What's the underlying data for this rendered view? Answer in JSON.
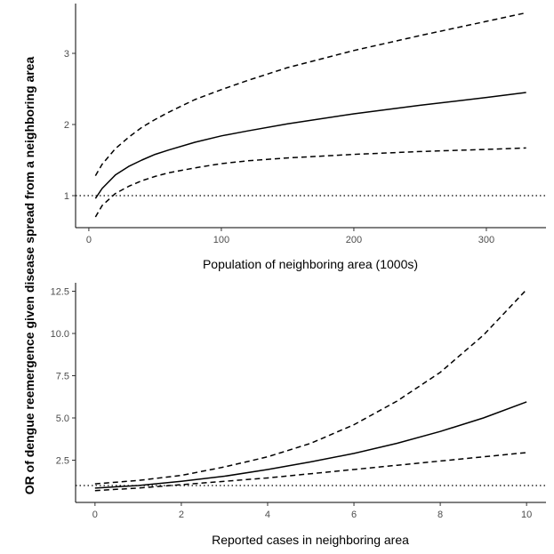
{
  "shared_ylabel": "OR of dengue reemergence given disease spread from a neighboring area",
  "colors": {
    "line": "#000000",
    "tick_text": "#4d4d4d",
    "background": "#ffffff"
  },
  "chart_data": [
    {
      "type": "line",
      "xlabel": "Population of neighboring area (1000s)",
      "ylabel": "",
      "xlim": [
        -10,
        345
      ],
      "ylim": [
        0.55,
        3.7
      ],
      "xticks": [
        0,
        100,
        200,
        300
      ],
      "yticks": [
        1,
        2,
        3
      ],
      "reference_line": {
        "y": 1,
        "style": "dotted"
      },
      "x": [
        5,
        10,
        20,
        30,
        40,
        50,
        60,
        80,
        100,
        120,
        150,
        200,
        250,
        300,
        330
      ],
      "series": [
        {
          "name": "upper CI",
          "style": "dashed",
          "values": [
            1.28,
            1.44,
            1.66,
            1.82,
            1.96,
            2.07,
            2.17,
            2.35,
            2.49,
            2.62,
            2.8,
            3.04,
            3.25,
            3.45,
            3.57
          ]
        },
        {
          "name": "estimate",
          "style": "solid",
          "values": [
            0.96,
            1.1,
            1.29,
            1.41,
            1.5,
            1.58,
            1.64,
            1.75,
            1.84,
            1.91,
            2.01,
            2.15,
            2.27,
            2.38,
            2.45
          ]
        },
        {
          "name": "lower CI",
          "style": "dashed",
          "values": [
            0.7,
            0.86,
            1.03,
            1.13,
            1.21,
            1.27,
            1.32,
            1.39,
            1.45,
            1.49,
            1.53,
            1.58,
            1.62,
            1.65,
            1.67
          ]
        }
      ]
    },
    {
      "type": "line",
      "xlabel": "Reported cases in neighboring area",
      "ylabel": "",
      "xlim": [
        -0.45,
        10.45
      ],
      "ylim": [
        0,
        13.0
      ],
      "xticks": [
        0,
        2,
        4,
        6,
        8,
        10
      ],
      "yticks": [
        2.5,
        5.0,
        7.5,
        10.0,
        12.5
      ],
      "ytick_labels": [
        "2.5",
        "5.0",
        "7.5",
        "10.0",
        "12.5"
      ],
      "reference_line": {
        "y": 1,
        "style": "dotted"
      },
      "x": [
        0,
        1,
        2,
        3,
        4,
        5,
        6,
        7,
        8,
        9,
        10
      ],
      "series": [
        {
          "name": "upper CI",
          "style": "dashed",
          "values": [
            1.1,
            1.3,
            1.6,
            2.1,
            2.7,
            3.5,
            4.6,
            6.0,
            7.7,
            9.9,
            12.6
          ]
        },
        {
          "name": "estimate",
          "style": "solid",
          "values": [
            0.85,
            1.0,
            1.25,
            1.55,
            1.95,
            2.4,
            2.9,
            3.5,
            4.2,
            5.0,
            5.95
          ]
        },
        {
          "name": "lower CI",
          "style": "dashed",
          "values": [
            0.7,
            0.85,
            1.05,
            1.25,
            1.45,
            1.7,
            1.95,
            2.2,
            2.45,
            2.7,
            2.95
          ]
        }
      ]
    }
  ]
}
